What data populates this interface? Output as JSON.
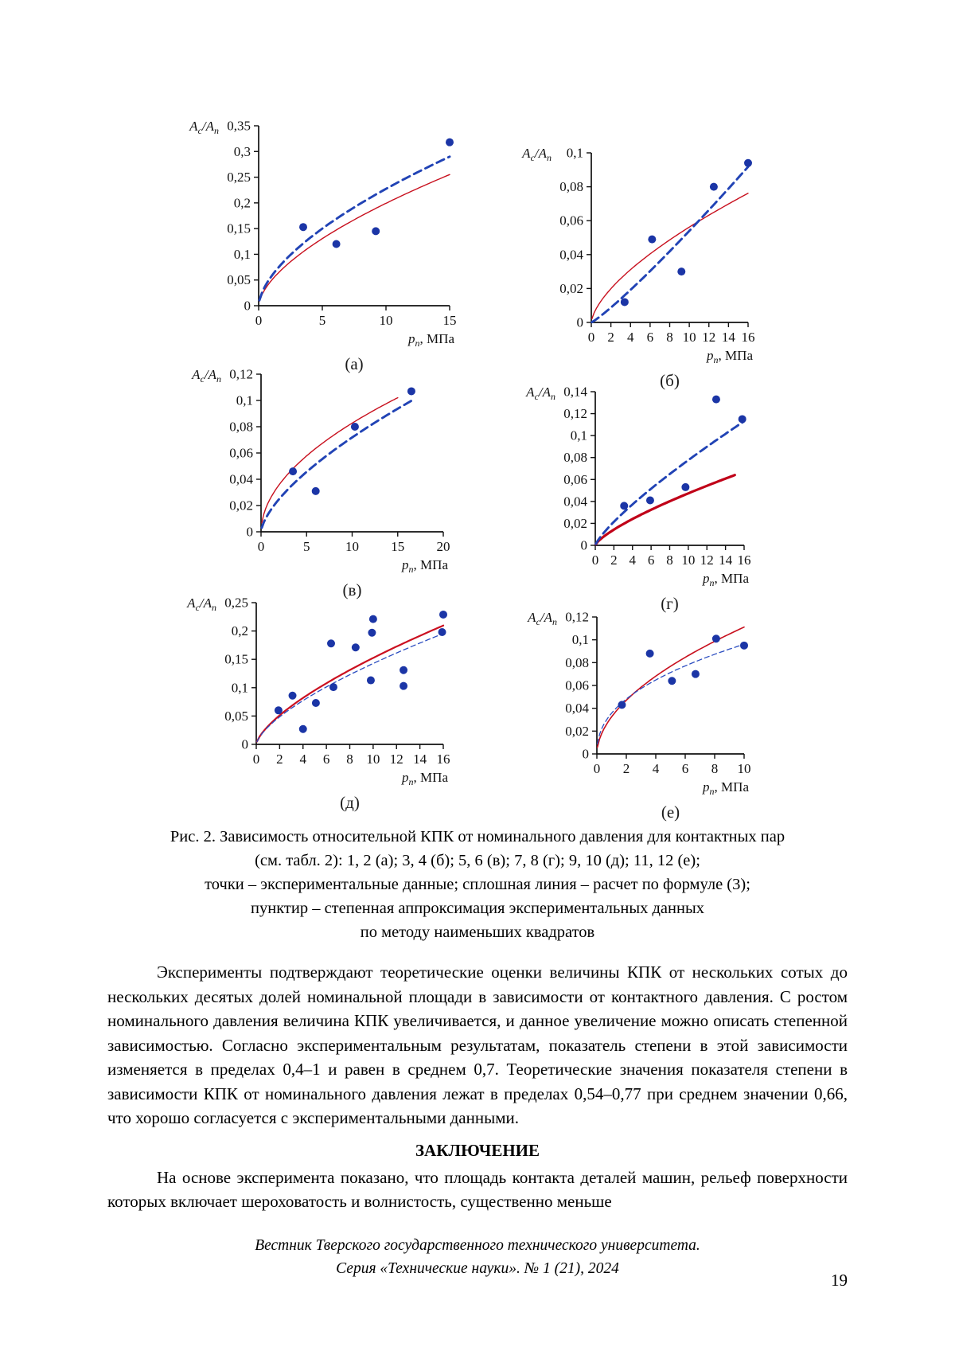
{
  "caption": {
    "lines": [
      "Рис. 2. Зависимость относительной КПК от номинального давления для контактных пар",
      "(см. табл. 2): 1, 2 (а); 3, 4 (б); 5, 6 (в); 7, 8 (г); 9, 10 (д); 11, 12 (е);",
      "точки – экспериментальные данные; сплошная линия – расчет по формуле (3);",
      "пунктир – степенная аппроксимация экспериментальных данных",
      "по методу наименьших квадратов"
    ]
  },
  "body": {
    "paragraph_experiments": "Эксперименты подтверждают теоретические оценки величины КПК от нескольких сотых до нескольких десятых долей номинальной площади в зависимости от контактного давления. С ростом номинального давления величина КПК увеличивается, и данное увеличение можно описать степенной зависимостью. Согласно экспериментальным результатам, показатель степени в этой зависимости изменяется в пределах 0,4–1 и равен в среднем 0,7. Теоретические значения показателя степени в зависимости КПК от номинального давления лежат в пределах 0,54–0,77 при среднем значении 0,66, что хорошо согласуется с экспериментальными данными.",
    "conclusion_heading": "ЗАКЛЮЧЕНИЕ",
    "paragraph_conclusion": "На основе эксперимента показано, что площадь контакта деталей машин, рельеф поверхности которых включает шероховатость и волнистость, существенно меньше"
  },
  "footer": {
    "line1": "Вестник Тверского государственного технического университета.",
    "line2": "Серия «Технические науки». № 1 (21), 2024",
    "page_number": "19"
  },
  "chart_common": {
    "y_title_runs": [
      {
        "t": "A",
        "i": 1
      },
      {
        "t": "c",
        "i": 1,
        "sub": 1
      },
      {
        "t": "/A",
        "i": 1
      },
      {
        "t": "n",
        "i": 1,
        "sub": 1
      }
    ],
    "x_title_runs": [
      {
        "t": "p",
        "i": 1
      },
      {
        "t": "n",
        "i": 1,
        "sub": 1
      },
      {
        "t": ", МПа"
      }
    ],
    "point_color": "#1b35a6",
    "axis_color": "#111111"
  },
  "chart_data": [
    {
      "type": "scatter_with_fit",
      "label": "(а)",
      "xlim": [
        0,
        15
      ],
      "ylim": [
        0,
        0.35
      ],
      "xticks": [
        {
          "v": 0,
          "t": "0"
        },
        {
          "v": 5,
          "t": "5"
        },
        {
          "v": 10,
          "t": "10"
        },
        {
          "v": 15,
          "t": "15"
        }
      ],
      "yticks": [
        {
          "v": 0,
          "t": "0"
        },
        {
          "v": 0.05,
          "t": "0,05"
        },
        {
          "v": 0.1,
          "t": "0,1"
        },
        {
          "v": 0.15,
          "t": "0,15"
        },
        {
          "v": 0.2,
          "t": "0,2"
        },
        {
          "v": 0.25,
          "t": "0,25"
        },
        {
          "v": 0.3,
          "t": "0,3"
        },
        {
          "v": 0.35,
          "t": "0,35"
        }
      ],
      "points": [
        [
          3.5,
          0.153
        ],
        [
          6.1,
          0.12
        ],
        [
          9.2,
          0.145
        ],
        [
          15.0,
          0.318
        ]
      ],
      "curves": [
        {
          "name": "расчет по формуле (3)",
          "color": "#c8101e",
          "width": 1.4,
          "dash": null,
          "a": 0.0489,
          "b": 0.61,
          "x_end": 15
        },
        {
          "name": "степенная аппроксимация МНК",
          "color": "#2143b5",
          "width": 2.9,
          "dash": "10,6",
          "a": 0.0571,
          "b": 0.6,
          "x_end": 15
        }
      ]
    },
    {
      "type": "scatter_with_fit",
      "label": "(б)",
      "xlim": [
        0,
        16
      ],
      "ylim": [
        0,
        0.1
      ],
      "xticks": [
        {
          "v": 0,
          "t": "0"
        },
        {
          "v": 2,
          "t": "2"
        },
        {
          "v": 4,
          "t": "4"
        },
        {
          "v": 6,
          "t": "6"
        },
        {
          "v": 8,
          "t": "8"
        },
        {
          "v": 10,
          "t": "10"
        },
        {
          "v": 12,
          "t": "12"
        },
        {
          "v": 14,
          "t": "14"
        },
        {
          "v": 16,
          "t": "16"
        }
      ],
      "yticks": [
        {
          "v": 0,
          "t": "0"
        },
        {
          "v": 0.02,
          "t": "0,02"
        },
        {
          "v": 0.04,
          "t": "0,04"
        },
        {
          "v": 0.06,
          "t": "0,06"
        },
        {
          "v": 0.08,
          "t": "0,08"
        },
        {
          "v": 0.1,
          "t": "0,1"
        }
      ],
      "points": [
        [
          3.4,
          0.012
        ],
        [
          6.2,
          0.049
        ],
        [
          9.2,
          0.03
        ],
        [
          12.5,
          0.08
        ],
        [
          16.0,
          0.094
        ]
      ],
      "curves": [
        {
          "name": "расчет по формуле (3)",
          "color": "#c8101e",
          "width": 1.4,
          "dash": null,
          "a": 0.0127,
          "b": 0.646,
          "x_end": 16
        },
        {
          "name": "степенная аппроксимация МНК",
          "color": "#2143b5",
          "width": 2.9,
          "dash": "10,6",
          "a": 0.004,
          "b": 1.13,
          "x_end": 16
        }
      ]
    },
    {
      "type": "scatter_with_fit",
      "label": "(в)",
      "xlim": [
        0,
        20
      ],
      "ylim": [
        0,
        0.12
      ],
      "xticks": [
        {
          "v": 0,
          "t": "0"
        },
        {
          "v": 5,
          "t": "5"
        },
        {
          "v": 10,
          "t": "10"
        },
        {
          "v": 15,
          "t": "15"
        },
        {
          "v": 20,
          "t": "20"
        }
      ],
      "yticks": [
        {
          "v": 0,
          "t": "0"
        },
        {
          "v": 0.02,
          "t": "0,02"
        },
        {
          "v": 0.04,
          "t": "0,04"
        },
        {
          "v": 0.06,
          "t": "0,06"
        },
        {
          "v": 0.08,
          "t": "0,08"
        },
        {
          "v": 0.1,
          "t": "0,1"
        },
        {
          "v": 0.12,
          "t": "0,12"
        }
      ],
      "points": [
        [
          3.5,
          0.046
        ],
        [
          6.0,
          0.031
        ],
        [
          10.3,
          0.08
        ],
        [
          16.5,
          0.107
        ]
      ],
      "curves": [
        {
          "name": "расчет по формуле (3)",
          "color": "#c8101e",
          "width": 1.4,
          "dash": null,
          "a": 0.0251,
          "b": 0.518,
          "x_end": 15
        },
        {
          "name": "степенная аппроксимация МНК",
          "color": "#2143b5",
          "width": 2.9,
          "dash": "10,6",
          "a": 0.0159,
          "b": 0.655,
          "x_end": 16.5
        }
      ]
    },
    {
      "type": "scatter_with_fit",
      "label": "(г)",
      "xlim": [
        0,
        16
      ],
      "ylim": [
        0,
        0.14
      ],
      "xticks": [
        {
          "v": 0,
          "t": "0"
        },
        {
          "v": 2,
          "t": "2"
        },
        {
          "v": 4,
          "t": "4"
        },
        {
          "v": 6,
          "t": "6"
        },
        {
          "v": 8,
          "t": "8"
        },
        {
          "v": 10,
          "t": "10"
        },
        {
          "v": 12,
          "t": "12"
        },
        {
          "v": 14,
          "t": "14"
        },
        {
          "v": 16,
          "t": "16"
        }
      ],
      "yticks": [
        {
          "v": 0,
          "t": "0"
        },
        {
          "v": 0.02,
          "t": "0,02"
        },
        {
          "v": 0.04,
          "t": "0,04"
        },
        {
          "v": 0.06,
          "t": "0,06"
        },
        {
          "v": 0.08,
          "t": "0,08"
        },
        {
          "v": 0.1,
          "t": "0,1"
        },
        {
          "v": 0.12,
          "t": "0,12"
        },
        {
          "v": 0.14,
          "t": "0,14"
        }
      ],
      "points": [
        [
          3.1,
          0.036
        ],
        [
          5.9,
          0.041
        ],
        [
          9.7,
          0.053
        ],
        [
          13.0,
          0.133
        ],
        [
          15.8,
          0.115
        ]
      ],
      "curves": [
        {
          "name": "расчет по формуле (3)",
          "color": "#c00018",
          "width": 3.2,
          "dash": null,
          "a": 0.00856,
          "b": 0.743,
          "x_end": 15
        },
        {
          "name": "степенная аппроксимация МНК",
          "color": "#2143b5",
          "width": 2.9,
          "dash": "10,6",
          "a": 0.0123,
          "b": 0.8,
          "x_end": 16
        }
      ]
    },
    {
      "type": "scatter_with_fit",
      "label": "(д)",
      "xlim": [
        0,
        16
      ],
      "ylim": [
        0,
        0.25
      ],
      "xticks": [
        {
          "v": 0,
          "t": "0"
        },
        {
          "v": 2,
          "t": "2"
        },
        {
          "v": 4,
          "t": "4"
        },
        {
          "v": 6,
          "t": "6"
        },
        {
          "v": 8,
          "t": "8"
        },
        {
          "v": 10,
          "t": "10"
        },
        {
          "v": 12,
          "t": "12"
        },
        {
          "v": 14,
          "t": "14"
        },
        {
          "v": 16,
          "t": "16"
        }
      ],
      "yticks": [
        {
          "v": 0,
          "t": "0"
        },
        {
          "v": 0.05,
          "t": "0,05"
        },
        {
          "v": 0.1,
          "t": "0,1"
        },
        {
          "v": 0.15,
          "t": "0,15"
        },
        {
          "v": 0.2,
          "t": "0,2"
        },
        {
          "v": 0.25,
          "t": "0,25"
        }
      ],
      "points": [
        [
          1.9,
          0.06
        ],
        [
          3.1,
          0.086
        ],
        [
          4.0,
          0.027
        ],
        [
          5.1,
          0.073
        ],
        [
          6.4,
          0.178
        ],
        [
          6.6,
          0.101
        ],
        [
          8.5,
          0.171
        ],
        [
          9.8,
          0.113
        ],
        [
          9.9,
          0.197
        ],
        [
          10.0,
          0.221
        ],
        [
          12.6,
          0.103
        ],
        [
          12.6,
          0.131
        ],
        [
          15.9,
          0.198
        ],
        [
          16.0,
          0.229
        ]
      ],
      "curves": [
        {
          "name": "расчет по формуле (3)",
          "color": "#cb1020",
          "width": 2.2,
          "dash": null,
          "a": 0.032,
          "b": 0.678,
          "x_end": 16
        },
        {
          "name": "степенная аппроксимация МНК",
          "color": "#2a4cc0",
          "width": 1.3,
          "dash": "6,4",
          "a": 0.0305,
          "b": 0.67,
          "x_end": 16
        }
      ]
    },
    {
      "type": "scatter_with_fit",
      "label": "(е)",
      "xlim": [
        0,
        10
      ],
      "ylim": [
        0,
        0.12
      ],
      "xticks": [
        {
          "v": 0,
          "t": "0"
        },
        {
          "v": 2,
          "t": "2"
        },
        {
          "v": 4,
          "t": "4"
        },
        {
          "v": 6,
          "t": "6"
        },
        {
          "v": 8,
          "t": "8"
        },
        {
          "v": 10,
          "t": "10"
        }
      ],
      "yticks": [
        {
          "v": 0,
          "t": "0"
        },
        {
          "v": 0.02,
          "t": "0,02"
        },
        {
          "v": 0.04,
          "t": "0,04"
        },
        {
          "v": 0.06,
          "t": "0,06"
        },
        {
          "v": 0.08,
          "t": "0,08"
        },
        {
          "v": 0.1,
          "t": "0,1"
        },
        {
          "v": 0.12,
          "t": "0,12"
        }
      ],
      "points": [
        [
          1.7,
          0.043
        ],
        [
          3.6,
          0.088
        ],
        [
          5.1,
          0.064
        ],
        [
          6.7,
          0.07
        ],
        [
          8.1,
          0.101
        ],
        [
          10.0,
          0.095
        ]
      ],
      "curves": [
        {
          "name": "расчет по формуле (3)",
          "color": "#c8101e",
          "width": 1.6,
          "dash": null,
          "a": 0.0325,
          "b": 0.534,
          "x_end": 10
        },
        {
          "name": "степенная аппроксимация МНК",
          "color": "#2a4cc0",
          "width": 1.3,
          "dash": "6,4",
          "a": 0.0357,
          "b": 0.43,
          "x_end": 10
        }
      ]
    }
  ]
}
